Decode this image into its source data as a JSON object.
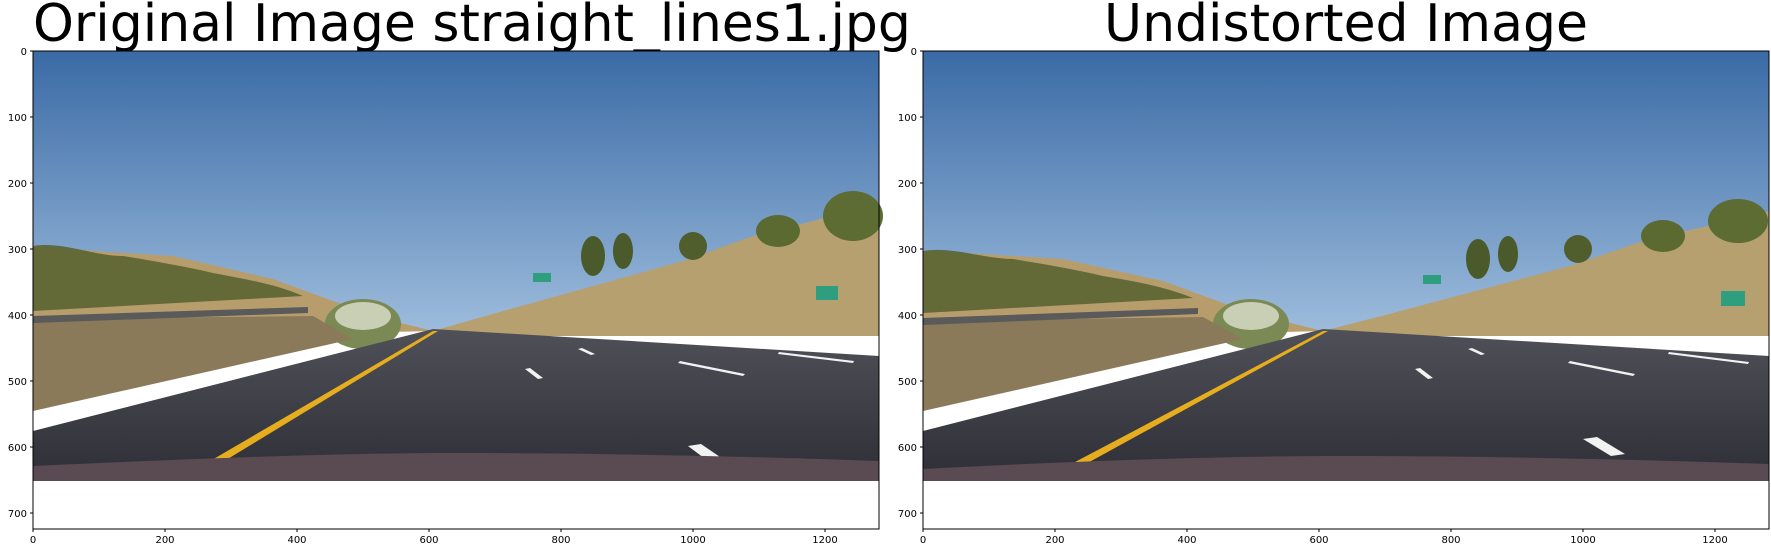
{
  "figure": {
    "panels": [
      {
        "title": "Original Image straight_lines1.jpg",
        "x_ticks": [
          "0",
          "200",
          "400",
          "600",
          "800",
          "1000",
          "1200"
        ],
        "y_ticks": [
          "0",
          "100",
          "200",
          "300",
          "400",
          "500",
          "600",
          "700"
        ]
      },
      {
        "title": "Undistorted Image",
        "x_ticks": [
          "0",
          "200",
          "400",
          "600",
          "800",
          "1000",
          "1200"
        ],
        "y_ticks": [
          "0",
          "100",
          "200",
          "300",
          "400",
          "500",
          "600",
          "700"
        ]
      }
    ],
    "image_size": {
      "width": 1280,
      "height": 720
    },
    "colors": {
      "sky_top": "#3f6fa8",
      "sky_bottom": "#8fb3d6",
      "hills": "#b39a6e",
      "vegetation": "#4e5a2c",
      "road": "#3a3a42",
      "yellow_lane": "#e8b020",
      "white_lane": "#f2f2f2",
      "hood": "#5a4a52",
      "sign_green": "#2f9e7e"
    }
  }
}
